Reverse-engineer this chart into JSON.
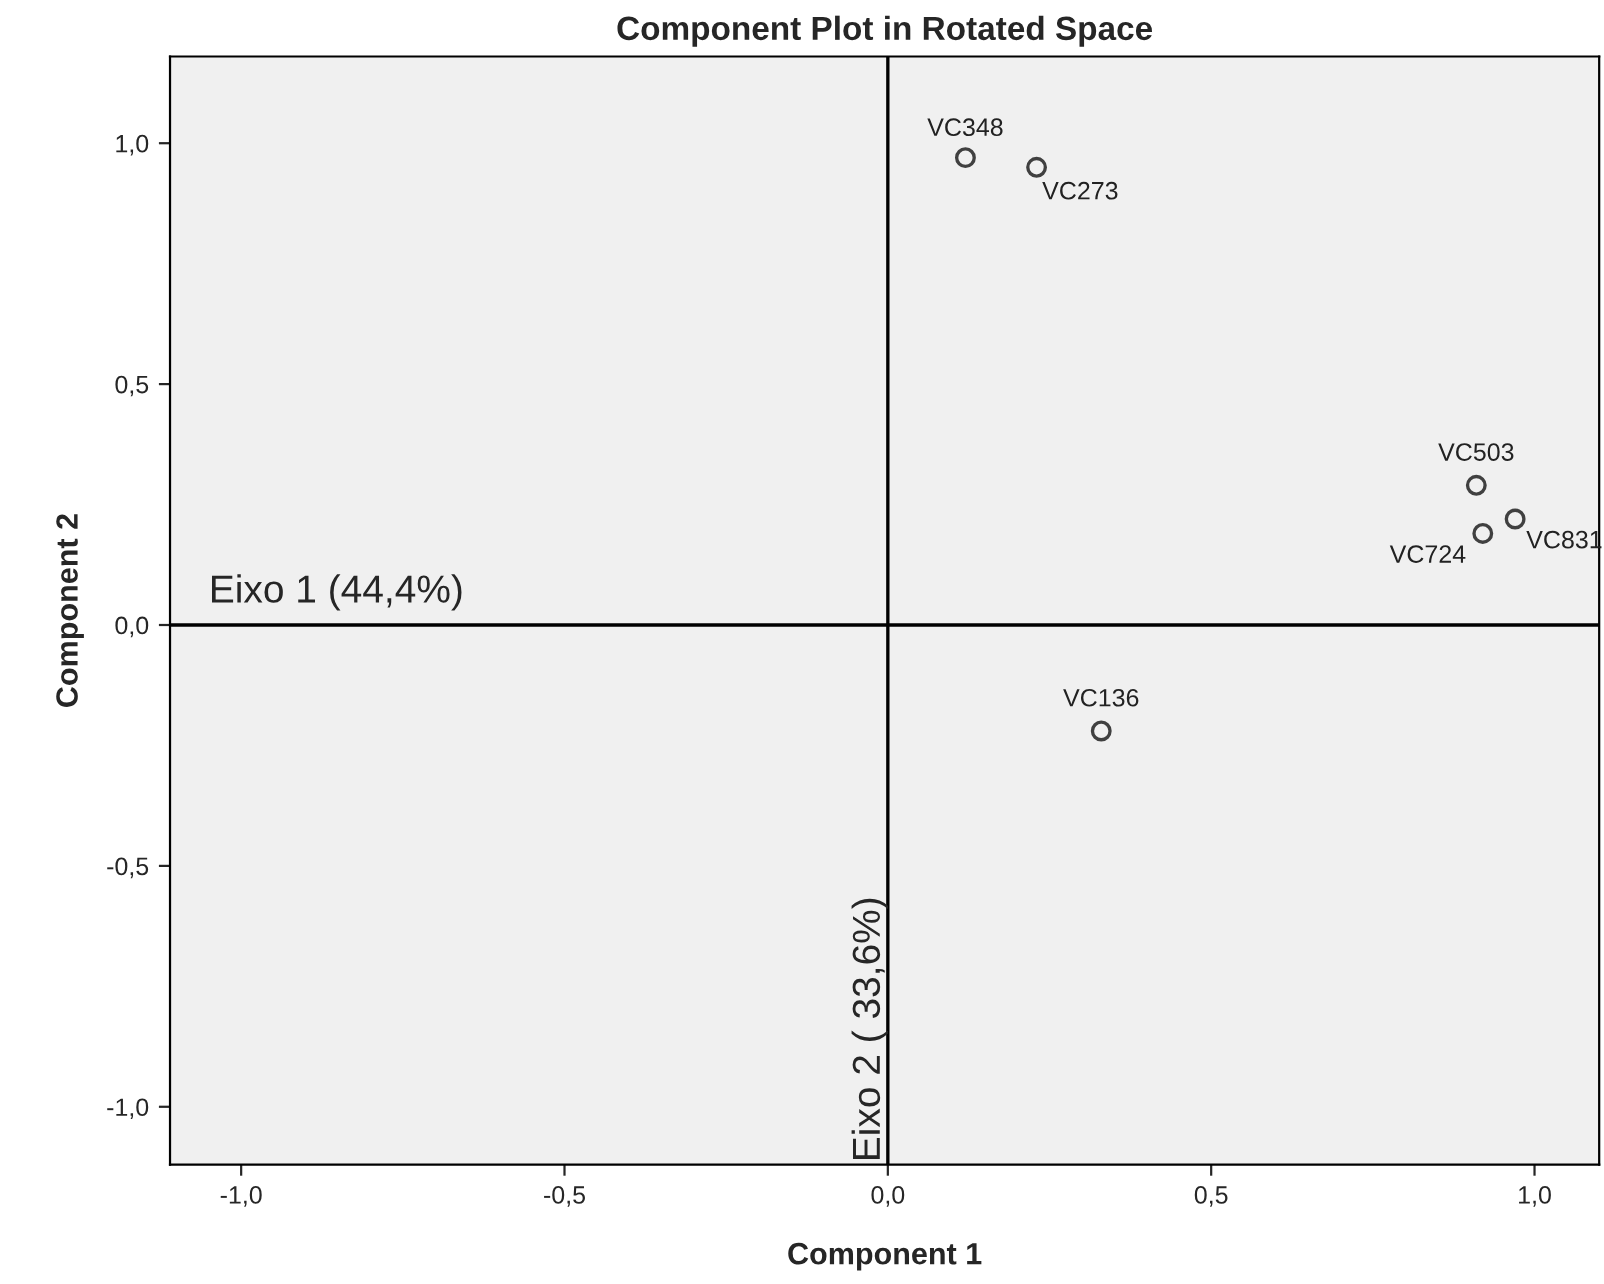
{
  "chart_data": {
    "type": "scatter",
    "title": "Component Plot in Rotated Space",
    "xlabel": "Component 1",
    "ylabel": "Component 2",
    "x": [
      0.12,
      0.23,
      0.91,
      0.97,
      0.92,
      0.33
    ],
    "series": [
      {
        "color": "#404040",
        "values": [
          0.97,
          0.95,
          0.29,
          0.22,
          0.19,
          -0.22
        ],
        "value_labels": [
          "VC348",
          "VC273",
          "VC503",
          "VC831",
          "VC724",
          "VC136"
        ]
      }
    ],
    "marker": "circle",
    "xlim": [
      -1.11,
      1.1
    ],
    "ylim": [
      -1.12,
      1.18
    ],
    "xticks": [
      {
        "value": -1.0,
        "label": "-1,0"
      },
      {
        "value": -0.5,
        "label": "-0,5"
      },
      {
        "value": 0.0,
        "label": "0,0"
      },
      {
        "value": 0.5,
        "label": "0,5"
      },
      {
        "value": 1.0,
        "label": "1,0"
      }
    ],
    "yticks": [
      {
        "value": -1.0,
        "label": "-1,0"
      },
      {
        "value": -0.5,
        "label": "-0,5"
      },
      {
        "value": 0.0,
        "label": "0,0"
      },
      {
        "value": 0.5,
        "label": "0,5"
      },
      {
        "value": 1.0,
        "label": "1,0"
      }
    ],
    "ref_lines": [
      {
        "axis": "y",
        "value": 0,
        "label": "Eixo 1 (44,4%)",
        "color": "#000000"
      },
      {
        "axis": "x",
        "value": 0,
        "label": "Eixo 2 ( 33,6%)",
        "color": "#000000"
      }
    ],
    "grid": false,
    "legend": false
  }
}
